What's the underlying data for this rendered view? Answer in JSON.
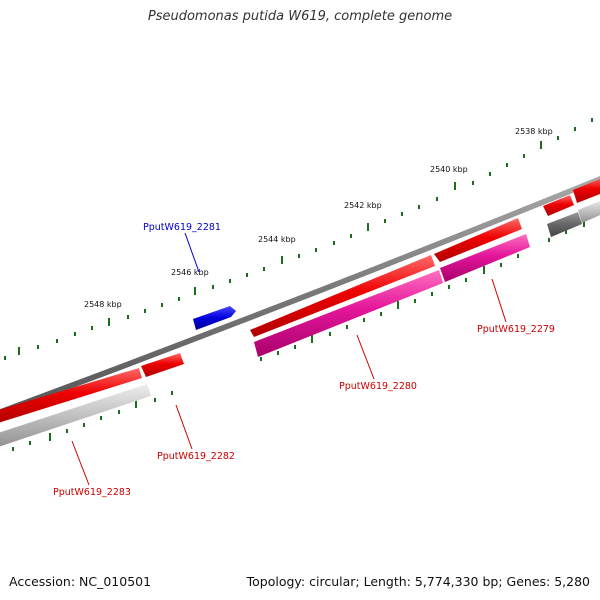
{
  "title": "Pseudomonas putida W619, complete genome",
  "footer": {
    "accession": "Accession: NC_010501",
    "summary": "Topology: circular; Length: 5,774,330 bp; Genes: 5,280"
  },
  "scale_labels": [
    "2538 kbp",
    "2540 kbp",
    "2542 kbp",
    "2544 kbp",
    "2546 kbp",
    "2548 kbp"
  ],
  "genes": [
    {
      "name": "PputW619_2279",
      "strand": "reverse",
      "color": "#e00000"
    },
    {
      "name": "PputW619_2280",
      "strand": "reverse",
      "color": "#e00000"
    },
    {
      "name": "PputW619_2281",
      "strand": "forward",
      "color": "#0000cc"
    },
    {
      "name": "PputW619_2282",
      "strand": "reverse",
      "color": "#e00000"
    },
    {
      "name": "PputW619_2283",
      "strand": "reverse",
      "color": "#e00000"
    }
  ],
  "colors": {
    "cds": "#e00000",
    "cds_highlight": "#0000cc",
    "cog": "#e0007a",
    "cog_gray": "#b0b0b0",
    "backbone": "#777777",
    "ticks": "#1b6e1b"
  }
}
